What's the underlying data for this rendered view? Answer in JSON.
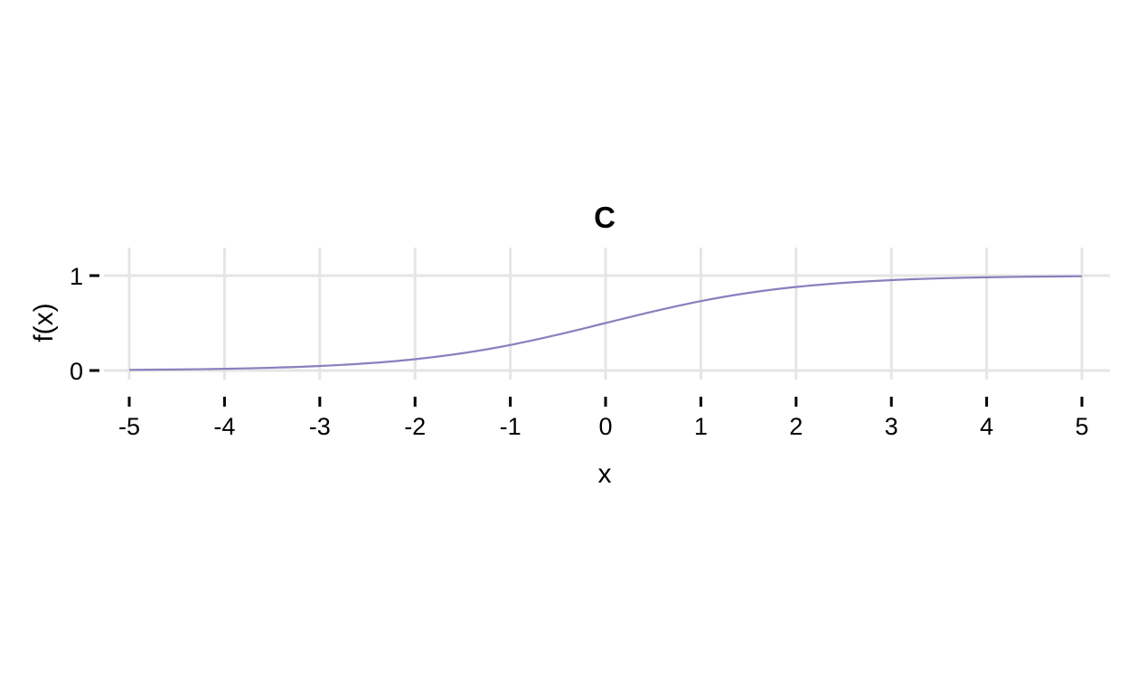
{
  "chart_data": {
    "type": "line",
    "title": "C",
    "xlabel": "x",
    "ylabel": "f(x)",
    "xlim": [
      -5,
      5
    ],
    "ylim": [
      0,
      1
    ],
    "x_ticks": [
      "-5",
      "-4",
      "-3",
      "-2",
      "-1",
      "0",
      "1",
      "2",
      "3",
      "4",
      "5"
    ],
    "y_ticks": [
      "0",
      "1"
    ],
    "grid": true,
    "legend": "none",
    "series": [
      {
        "color": "#8b7fbd",
        "x": [
          -5,
          -4.5,
          -4,
          -3.5,
          -3,
          -2.5,
          -2,
          -1.5,
          -1,
          -0.5,
          0,
          0.5,
          1,
          1.5,
          2,
          2.5,
          3,
          3.5,
          4,
          4.5,
          5
        ],
        "y": [
          0.0067,
          0.011,
          0.018,
          0.0293,
          0.0474,
          0.0759,
          0.1192,
          0.1824,
          0.2689,
          0.3775,
          0.5,
          0.6225,
          0.7311,
          0.8176,
          0.8808,
          0.9241,
          0.9526,
          0.9707,
          0.982,
          0.989,
          0.9933
        ]
      }
    ]
  }
}
